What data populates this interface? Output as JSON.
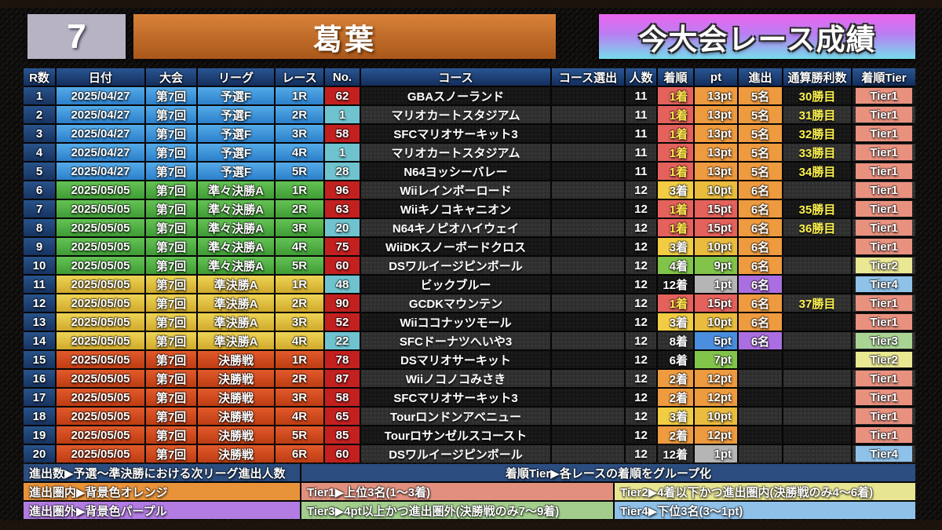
{
  "header": {
    "round_number": "7",
    "player_name": "葛葉",
    "title": "今大会レース成績"
  },
  "table": {
    "columns": [
      "R数",
      "日付",
      "大会",
      "リーグ",
      "レース",
      "No.",
      "コース",
      "コース選出",
      "人数",
      "着順",
      "pt",
      "進出",
      "通算勝利数",
      "着順Tier"
    ],
    "rows": [
      {
        "r": "1",
        "date": "2025/04/27",
        "event": "第7回",
        "league": "予選F",
        "league_key": "qualifier",
        "race": "1R",
        "no": "62",
        "no_key": "red",
        "course": "GBAスノーランド",
        "pick": "",
        "players": "11",
        "rank": "1着",
        "rank_key": "rank1",
        "pt": "13pt",
        "pt_key": "orange",
        "adv": "5名",
        "adv_key": "orange",
        "wins": "30勝目",
        "tier": "Tier1",
        "tier_key": "tier1"
      },
      {
        "r": "2",
        "date": "2025/04/27",
        "event": "第7回",
        "league": "予選F",
        "league_key": "qualifier",
        "race": "2R",
        "no": "1",
        "no_key": "teal",
        "course": "マリオカートスタジアム",
        "pick": "",
        "players": "11",
        "rank": "1着",
        "rank_key": "rank1",
        "pt": "13pt",
        "pt_key": "orange",
        "adv": "5名",
        "adv_key": "orange",
        "wins": "31勝目",
        "tier": "Tier1",
        "tier_key": "tier1"
      },
      {
        "r": "3",
        "date": "2025/04/27",
        "event": "第7回",
        "league": "予選F",
        "league_key": "qualifier",
        "race": "3R",
        "no": "58",
        "no_key": "red",
        "course": "SFCマリオサーキット3",
        "pick": "",
        "players": "11",
        "rank": "1着",
        "rank_key": "rank1",
        "pt": "13pt",
        "pt_key": "orange",
        "adv": "5名",
        "adv_key": "orange",
        "wins": "32勝目",
        "tier": "Tier1",
        "tier_key": "tier1"
      },
      {
        "r": "4",
        "date": "2025/04/27",
        "event": "第7回",
        "league": "予選F",
        "league_key": "qualifier",
        "race": "4R",
        "no": "1",
        "no_key": "teal",
        "course": "マリオカートスタジアム",
        "pick": "",
        "players": "11",
        "rank": "1着",
        "rank_key": "rank1",
        "pt": "13pt",
        "pt_key": "orange",
        "adv": "5名",
        "adv_key": "orange",
        "wins": "33勝目",
        "tier": "Tier1",
        "tier_key": "tier1"
      },
      {
        "r": "5",
        "date": "2025/04/27",
        "event": "第7回",
        "league": "予選F",
        "league_key": "qualifier",
        "race": "5R",
        "no": "28",
        "no_key": "teal",
        "course": "N64ヨッシーバレー",
        "pick": "",
        "players": "11",
        "rank": "1着",
        "rank_key": "rank1",
        "pt": "13pt",
        "pt_key": "orange",
        "adv": "5名",
        "adv_key": "orange",
        "wins": "34勝目",
        "tier": "Tier1",
        "tier_key": "tier1"
      },
      {
        "r": "6",
        "date": "2025/05/05",
        "event": "第7回",
        "league": "準々決勝A",
        "league_key": "quarterfinal",
        "race": "1R",
        "no": "96",
        "no_key": "red",
        "course": "Wiiレインボーロード",
        "pick": "",
        "players": "12",
        "rank": "3着",
        "rank_key": "rank3",
        "pt": "10pt",
        "pt_key": "gold",
        "adv": "6名",
        "adv_key": "orange",
        "wins": "",
        "tier": "Tier1",
        "tier_key": "tier1"
      },
      {
        "r": "7",
        "date": "2025/05/05",
        "event": "第7回",
        "league": "準々決勝A",
        "league_key": "quarterfinal",
        "race": "2R",
        "no": "63",
        "no_key": "red",
        "course": "Wiiキノコキャニオン",
        "pick": "",
        "players": "12",
        "rank": "1着",
        "rank_key": "rank1",
        "pt": "15pt",
        "pt_key": "salmon",
        "adv": "6名",
        "adv_key": "orange",
        "wins": "35勝目",
        "tier": "Tier1",
        "tier_key": "tier1"
      },
      {
        "r": "8",
        "date": "2025/05/05",
        "event": "第7回",
        "league": "準々決勝A",
        "league_key": "quarterfinal",
        "race": "3R",
        "no": "20",
        "no_key": "teal",
        "course": "N64キノピオハイウェイ",
        "pick": "",
        "players": "12",
        "rank": "1着",
        "rank_key": "rank1",
        "pt": "15pt",
        "pt_key": "salmon",
        "adv": "6名",
        "adv_key": "orange",
        "wins": "36勝目",
        "tier": "Tier1",
        "tier_key": "tier1"
      },
      {
        "r": "9",
        "date": "2025/05/05",
        "event": "第7回",
        "league": "準々決勝A",
        "league_key": "quarterfinal",
        "race": "4R",
        "no": "75",
        "no_key": "red",
        "course": "WiiDKスノーボードクロス",
        "pick": "",
        "players": "12",
        "rank": "3着",
        "rank_key": "rank3",
        "pt": "10pt",
        "pt_key": "gold",
        "adv": "6名",
        "adv_key": "orange",
        "wins": "",
        "tier": "Tier1",
        "tier_key": "tier1"
      },
      {
        "r": "10",
        "date": "2025/05/05",
        "event": "第7回",
        "league": "準々決勝A",
        "league_key": "quarterfinal",
        "race": "5R",
        "no": "60",
        "no_key": "red",
        "course": "DSワルイージピンボール",
        "pick": "",
        "players": "12",
        "rank": "4着",
        "rank_key": "rank4",
        "pt": "9pt",
        "pt_key": "green",
        "adv": "6名",
        "adv_key": "orange",
        "wins": "",
        "tier": "Tier2",
        "tier_key": "tier2"
      },
      {
        "r": "11",
        "date": "2025/05/05",
        "event": "第7回",
        "league": "準決勝A",
        "league_key": "semifinal",
        "race": "1R",
        "no": "48",
        "no_key": "teal",
        "course": "ビックブルー",
        "pick": "",
        "players": "12",
        "rank": "12着",
        "rank_key": "none",
        "pt": "1pt",
        "pt_key": "gray",
        "adv": "6名",
        "adv_key": "purple",
        "wins": "",
        "tier": "Tier4",
        "tier_key": "tier4"
      },
      {
        "r": "12",
        "date": "2025/05/05",
        "event": "第7回",
        "league": "準決勝A",
        "league_key": "semifinal",
        "race": "2R",
        "no": "90",
        "no_key": "red",
        "course": "GCDKマウンテン",
        "pick": "",
        "players": "12",
        "rank": "1着",
        "rank_key": "rank1",
        "pt": "15pt",
        "pt_key": "salmon",
        "adv": "6名",
        "adv_key": "orange",
        "wins": "37勝目",
        "tier": "Tier1",
        "tier_key": "tier1"
      },
      {
        "r": "13",
        "date": "2025/05/05",
        "event": "第7回",
        "league": "準決勝A",
        "league_key": "semifinal",
        "race": "3R",
        "no": "52",
        "no_key": "red",
        "course": "Wiiココナッツモール",
        "pick": "",
        "players": "12",
        "rank": "3着",
        "rank_key": "rank3",
        "pt": "10pt",
        "pt_key": "gold",
        "adv": "6名",
        "adv_key": "orange",
        "wins": "",
        "tier": "Tier1",
        "tier_key": "tier1"
      },
      {
        "r": "14",
        "date": "2025/05/05",
        "event": "第7回",
        "league": "準決勝A",
        "league_key": "semifinal",
        "race": "4R",
        "no": "22",
        "no_key": "teal",
        "course": "SFCドーナツへいや3",
        "pick": "",
        "players": "12",
        "rank": "8着",
        "rank_key": "none",
        "pt": "5pt",
        "pt_key": "blue",
        "adv": "6名",
        "adv_key": "purple",
        "wins": "",
        "tier": "Tier3",
        "tier_key": "tier3"
      },
      {
        "r": "15",
        "date": "2025/05/05",
        "event": "第7回",
        "league": "決勝戦",
        "league_key": "final",
        "race": "1R",
        "no": "78",
        "no_key": "red",
        "course": "DSマリオサーキット",
        "pick": "",
        "players": "12",
        "rank": "6着",
        "rank_key": "none",
        "pt": "7pt",
        "pt_key": "green",
        "adv": "",
        "adv_key": "",
        "wins": "",
        "tier": "Tier2",
        "tier_key": "tier2"
      },
      {
        "r": "16",
        "date": "2025/05/05",
        "event": "第7回",
        "league": "決勝戦",
        "league_key": "final",
        "race": "2R",
        "no": "87",
        "no_key": "red",
        "course": "Wiiノコノコみさき",
        "pick": "",
        "players": "12",
        "rank": "2着",
        "rank_key": "rank2",
        "pt": "12pt",
        "pt_key": "orange",
        "adv": "",
        "adv_key": "",
        "wins": "",
        "tier": "Tier1",
        "tier_key": "tier1"
      },
      {
        "r": "17",
        "date": "2025/05/05",
        "event": "第7回",
        "league": "決勝戦",
        "league_key": "final",
        "race": "3R",
        "no": "58",
        "no_key": "red",
        "course": "SFCマリオサーキット3",
        "pick": "",
        "players": "12",
        "rank": "2着",
        "rank_key": "rank2",
        "pt": "12pt",
        "pt_key": "orange",
        "adv": "",
        "adv_key": "",
        "wins": "",
        "tier": "Tier1",
        "tier_key": "tier1"
      },
      {
        "r": "18",
        "date": "2025/05/05",
        "event": "第7回",
        "league": "決勝戦",
        "league_key": "final",
        "race": "4R",
        "no": "65",
        "no_key": "red",
        "course": "Tourロンドンアベニュー",
        "pick": "",
        "players": "12",
        "rank": "3着",
        "rank_key": "rank3",
        "pt": "10pt",
        "pt_key": "gold",
        "adv": "",
        "adv_key": "",
        "wins": "",
        "tier": "Tier1",
        "tier_key": "tier1"
      },
      {
        "r": "19",
        "date": "2025/05/05",
        "event": "第7回",
        "league": "決勝戦",
        "league_key": "final",
        "race": "5R",
        "no": "85",
        "no_key": "red",
        "course": "Tourロサンゼルスコースト",
        "pick": "",
        "players": "12",
        "rank": "2着",
        "rank_key": "rank2",
        "pt": "12pt",
        "pt_key": "orange",
        "adv": "",
        "adv_key": "",
        "wins": "",
        "tier": "Tier1",
        "tier_key": "tier1"
      },
      {
        "r": "20",
        "date": "2025/05/05",
        "event": "第7回",
        "league": "決勝戦",
        "league_key": "final",
        "race": "6R",
        "no": "60",
        "no_key": "red",
        "course": "DSワルイージピンボール",
        "pick": "",
        "players": "12",
        "rank": "12着",
        "rank_key": "none",
        "pt": "1pt",
        "pt_key": "gray",
        "adv": "",
        "adv_key": "",
        "wins": "",
        "tier": "Tier4",
        "tier_key": "tier4"
      }
    ]
  },
  "footer": {
    "row1_left": "進出数▶予選〜準決勝における次リーグ進出人数",
    "row1_right": "着順Tier▶各レースの着順をグループ化",
    "row2_left": "進出圏内▶背景色オレンジ",
    "row2_mid": "Tier1▶上位3名(1〜3着)",
    "row2_right": "Tier2▶4着以下かつ進出圏内(決勝戦のみ4〜6着)",
    "row3_left": "進出圏外▶背景色パープル",
    "row3_mid": "Tier3▶4pt以上かつ進出圏外(決勝戦のみ7〜9着)",
    "row3_right": "Tier4▶下位3名(3〜1pt)"
  },
  "colors": {
    "round_box": "#b7b3c3",
    "player_box": [
      "#d8823a",
      "#a9571a"
    ],
    "title_box": [
      "#ed64ee",
      "#b97ff2",
      "#76dcec"
    ],
    "header_navy": [
      "#2a5693",
      "#142e5c"
    ],
    "row_navy": [
      "#28538b",
      "#173360"
    ],
    "league": {
      "qualifier": [
        "#55abe8",
        "#2c7fca"
      ],
      "quarterfinal": [
        "#64c354",
        "#3f9b35"
      ],
      "semifinal": [
        "#eed455",
        "#d0aa2c"
      ],
      "final": [
        "#e25a2b",
        "#bd3c13"
      ]
    },
    "no": {
      "red": "#c32020",
      "teal": "#6fc3cf"
    },
    "rank": {
      "rank1": {
        "bg": "#e4615c",
        "text": "#ffe94f"
      },
      "rank2": {
        "bg": "#ee9a3f",
        "text": "#ffffff"
      },
      "rank3": {
        "bg": "#f2cd44",
        "text": "#ffffff"
      },
      "rank4": {
        "bg": "#82c44a",
        "text": "#ffffff"
      },
      "none": {
        "bg": "",
        "text": "#ffffff"
      }
    },
    "pt": {
      "salmon": "#e4615c",
      "orange": "#ee9a3f",
      "gold": "#eabc3e",
      "green": "#82c44a",
      "blue": "#4a8edd",
      "gray": "#b5b5b5"
    },
    "adv": {
      "orange": "#ee9a3f",
      "purple": "#ab6ee0"
    },
    "tier": {
      "tier1": "#e9917f",
      "tier2": "#eae892",
      "tier3": "#a9d494",
      "tier4": "#8fc2e9"
    },
    "wins_text": "#fcf14e",
    "footer": {
      "navy": "#2b4d7f",
      "orange": "#e89239",
      "purple": "#b27ce2",
      "tier1": "#e2907e",
      "tier2": "#e7e492",
      "tier3": "#a2cd8c",
      "tier4": "#8fc0e8"
    }
  }
}
